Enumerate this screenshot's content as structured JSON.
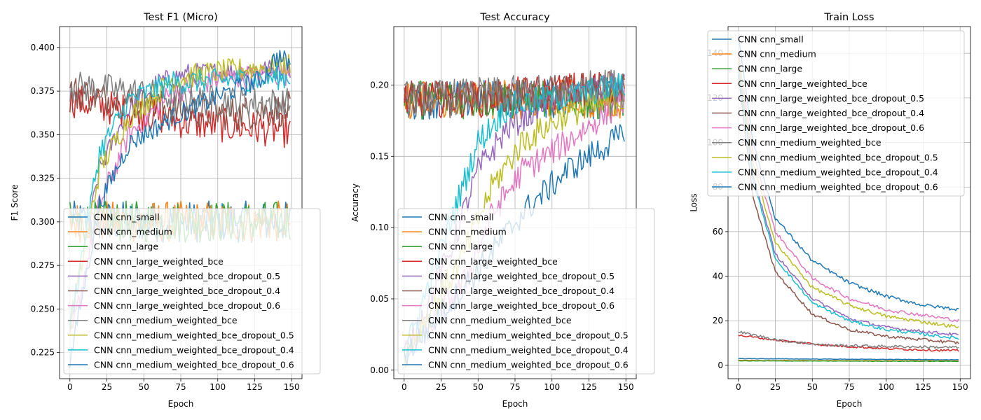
{
  "series_names": [
    "CNN cnn_small",
    "CNN cnn_medium",
    "CNN cnn_large",
    "CNN cnn_large_weighted_bce",
    "CNN cnn_large_weighted_bce_dropout_0.5",
    "CNN cnn_large_weighted_bce_dropout_0.4",
    "CNN cnn_large_weighted_bce_dropout_0.6",
    "CNN cnn_medium_weighted_bce",
    "CNN cnn_medium_weighted_bce_dropout_0.5",
    "CNN cnn_medium_weighted_bce_dropout_0.4",
    "CNN cnn_medium_weighted_bce_dropout_0.6"
  ],
  "colors": [
    "#1f77b4",
    "#ff7f0e",
    "#2ca02c",
    "#d62728",
    "#9467bd",
    "#8c564b",
    "#e377c2",
    "#7f7f7f",
    "#bcbd22",
    "#17becf",
    "#1f77b4"
  ],
  "chart_data": [
    {
      "type": "line",
      "title": "Test F1 (Micro)",
      "xlabel": "Epoch",
      "ylabel": "F1 Score",
      "xlim": [
        -7,
        157
      ],
      "ylim": [
        0.21,
        0.412
      ],
      "xticks": [
        0,
        25,
        50,
        75,
        100,
        125,
        150
      ],
      "yticks": [
        0.225,
        0.25,
        0.275,
        0.3,
        0.325,
        0.35,
        0.375,
        0.4
      ],
      "ytick_labels": [
        "0.225",
        "0.250",
        "0.275",
        "0.300",
        "0.325",
        "0.350",
        "0.375",
        "0.400"
      ],
      "grid": true,
      "legend_position": "lower center",
      "epochs": 150,
      "series": [
        {
          "name": "CNN cnn_small",
          "keypoints": [
            [
              0,
              0.3
            ],
            [
              150,
              0.3
            ]
          ],
          "noise": 0.012
        },
        {
          "name": "CNN cnn_medium",
          "keypoints": [
            [
              0,
              0.3
            ],
            [
              150,
              0.3
            ]
          ],
          "noise": 0.012
        },
        {
          "name": "CNN cnn_large",
          "keypoints": [
            [
              0,
              0.3
            ],
            [
              150,
              0.3
            ]
          ],
          "noise": 0.012
        },
        {
          "name": "CNN cnn_large_weighted_bce",
          "keypoints": [
            [
              0,
              0.37
            ],
            [
              30,
              0.365
            ],
            [
              80,
              0.357
            ],
            [
              150,
              0.352
            ]
          ],
          "noise": 0.01
        },
        {
          "name": "CNN cnn_large_weighted_bce_dropout_0.5",
          "keypoints": [
            [
              0,
              0.24
            ],
            [
              20,
              0.33
            ],
            [
              40,
              0.365
            ],
            [
              60,
              0.38
            ],
            [
              80,
              0.385
            ],
            [
              150,
              0.388
            ]
          ],
          "noise": 0.006
        },
        {
          "name": "CNN cnn_large_weighted_bce_dropout_0.4",
          "keypoints": [
            [
              0,
              0.375
            ],
            [
              30,
              0.37
            ],
            [
              70,
              0.365
            ],
            [
              110,
              0.362
            ],
            [
              150,
              0.365
            ]
          ],
          "noise": 0.01
        },
        {
          "name": "CNN cnn_large_weighted_bce_dropout_0.6",
          "keypoints": [
            [
              0,
              0.23
            ],
            [
              20,
              0.31
            ],
            [
              40,
              0.35
            ],
            [
              70,
              0.375
            ],
            [
              100,
              0.382
            ],
            [
              150,
              0.385
            ]
          ],
          "noise": 0.007
        },
        {
          "name": "CNN cnn_medium_weighted_bce",
          "keypoints": [
            [
              0,
              0.378
            ],
            [
              40,
              0.375
            ],
            [
              80,
              0.37
            ],
            [
              150,
              0.368
            ]
          ],
          "noise": 0.009
        },
        {
          "name": "CNN cnn_medium_weighted_bce_dropout_0.5",
          "keypoints": [
            [
              0,
              0.24
            ],
            [
              20,
              0.33
            ],
            [
              40,
              0.36
            ],
            [
              70,
              0.382
            ],
            [
              100,
              0.386
            ],
            [
              150,
              0.39
            ]
          ],
          "noise": 0.007
        },
        {
          "name": "CNN cnn_medium_weighted_bce_dropout_0.4",
          "keypoints": [
            [
              0,
              0.24
            ],
            [
              20,
              0.34
            ],
            [
              40,
              0.37
            ],
            [
              70,
              0.38
            ],
            [
              150,
              0.383
            ]
          ],
          "noise": 0.007
        },
        {
          "name": "CNN cnn_medium_weighted_bce_dropout_0.6",
          "keypoints": [
            [
              0,
              0.22
            ],
            [
              20,
              0.31
            ],
            [
              40,
              0.345
            ],
            [
              70,
              0.36
            ],
            [
              100,
              0.372
            ],
            [
              130,
              0.382
            ],
            [
              140,
              0.395
            ],
            [
              150,
              0.39
            ]
          ],
          "noise": 0.006
        }
      ]
    },
    {
      "type": "line",
      "title": "Test Accuracy",
      "xlabel": "Epoch",
      "ylabel": "Accuracy",
      "xlim": [
        -7,
        157
      ],
      "ylim": [
        -0.006,
        0.241
      ],
      "xticks": [
        0,
        25,
        50,
        75,
        100,
        125,
        150
      ],
      "yticks": [
        0.0,
        0.05,
        0.1,
        0.15,
        0.2
      ],
      "ytick_labels": [
        "0.00",
        "0.05",
        "0.10",
        "0.15",
        "0.20"
      ],
      "grid": true,
      "legend_position": "lower center",
      "epochs": 150,
      "series": [
        {
          "name": "CNN cnn_small",
          "keypoints": [
            [
              0,
              0.19
            ],
            [
              150,
              0.19
            ]
          ],
          "noise": 0.014
        },
        {
          "name": "CNN cnn_medium",
          "keypoints": [
            [
              0,
              0.19
            ],
            [
              150,
              0.19
            ]
          ],
          "noise": 0.014
        },
        {
          "name": "CNN cnn_large",
          "keypoints": [
            [
              0,
              0.19
            ],
            [
              150,
              0.19
            ]
          ],
          "noise": 0.014
        },
        {
          "name": "CNN cnn_large_weighted_bce",
          "keypoints": [
            [
              0,
              0.19
            ],
            [
              50,
              0.19
            ],
            [
              100,
              0.195
            ],
            [
              150,
              0.2
            ]
          ],
          "noise": 0.013
        },
        {
          "name": "CNN cnn_large_weighted_bce_dropout_0.5",
          "keypoints": [
            [
              0,
              0.01
            ],
            [
              30,
              0.08
            ],
            [
              50,
              0.14
            ],
            [
              70,
              0.17
            ],
            [
              100,
              0.19
            ],
            [
              150,
              0.2
            ]
          ],
          "noise": 0.01
        },
        {
          "name": "CNN cnn_large_weighted_bce_dropout_0.4",
          "keypoints": [
            [
              0,
              0.19
            ],
            [
              50,
              0.19
            ],
            [
              100,
              0.195
            ],
            [
              150,
              0.2
            ]
          ],
          "noise": 0.013
        },
        {
          "name": "CNN cnn_large_weighted_bce_dropout_0.6",
          "keypoints": [
            [
              0,
              0.01
            ],
            [
              40,
              0.06
            ],
            [
              60,
              0.11
            ],
            [
              80,
              0.14
            ],
            [
              110,
              0.16
            ],
            [
              150,
              0.19
            ]
          ],
          "noise": 0.01
        },
        {
          "name": "CNN cnn_medium_weighted_bce",
          "keypoints": [
            [
              0,
              0.19
            ],
            [
              100,
              0.195
            ],
            [
              150,
              0.2
            ]
          ],
          "noise": 0.013
        },
        {
          "name": "CNN cnn_medium_weighted_bce_dropout_0.5",
          "keypoints": [
            [
              0,
              0.01
            ],
            [
              40,
              0.08
            ],
            [
              60,
              0.13
            ],
            [
              80,
              0.16
            ],
            [
              110,
              0.18
            ],
            [
              150,
              0.19
            ]
          ],
          "noise": 0.01
        },
        {
          "name": "CNN cnn_medium_weighted_bce_dropout_0.4",
          "keypoints": [
            [
              0,
              0.01
            ],
            [
              30,
              0.1
            ],
            [
              50,
              0.16
            ],
            [
              70,
              0.185
            ],
            [
              150,
              0.2
            ]
          ],
          "noise": 0.01
        },
        {
          "name": "CNN cnn_medium_weighted_bce_dropout_0.6",
          "keypoints": [
            [
              0,
              0.01
            ],
            [
              50,
              0.07
            ],
            [
              80,
              0.11
            ],
            [
              110,
              0.14
            ],
            [
              140,
              0.16
            ],
            [
              150,
              0.165
            ]
          ],
          "noise": 0.01
        }
      ]
    },
    {
      "type": "line",
      "title": "Train Loss",
      "xlabel": "Epoch",
      "ylabel": "Loss",
      "xlim": [
        -7,
        157
      ],
      "ylim": [
        -6,
        152
      ],
      "xticks": [
        0,
        25,
        50,
        75,
        100,
        125,
        150
      ],
      "yticks": [
        0,
        20,
        40,
        60,
        80,
        100,
        120,
        140
      ],
      "ytick_labels": [
        "0",
        "20",
        "40",
        "60",
        "80",
        "100",
        "120",
        "140"
      ],
      "grid": true,
      "legend_position": "upper center",
      "epochs": 150,
      "series": [
        {
          "name": "CNN cnn_small",
          "keypoints": [
            [
              0,
              3.0
            ],
            [
              150,
              2.5
            ]
          ],
          "noise": 0.1
        },
        {
          "name": "CNN cnn_medium",
          "keypoints": [
            [
              0,
              2.2
            ],
            [
              150,
              2.0
            ]
          ],
          "noise": 0.1
        },
        {
          "name": "CNN cnn_large",
          "keypoints": [
            [
              0,
              2.0
            ],
            [
              150,
              1.8
            ]
          ],
          "noise": 0.1
        },
        {
          "name": "CNN cnn_large_weighted_bce",
          "keypoints": [
            [
              0,
              13.5
            ],
            [
              30,
              11
            ],
            [
              60,
              9
            ],
            [
              100,
              7.5
            ],
            [
              150,
              6.5
            ]
          ],
          "noise": 0.5
        },
        {
          "name": "CNN cnn_large_weighted_bce_dropout_0.5",
          "keypoints": [
            [
              0,
              135
            ],
            [
              10,
              85
            ],
            [
              25,
              50
            ],
            [
              50,
              30
            ],
            [
              75,
              21
            ],
            [
              100,
              17
            ],
            [
              150,
              13.5
            ]
          ],
          "noise": 0.7
        },
        {
          "name": "CNN cnn_large_weighted_bce_dropout_0.4",
          "keypoints": [
            [
              0,
              130
            ],
            [
              10,
              75
            ],
            [
              25,
              42
            ],
            [
              50,
              23
            ],
            [
              75,
              16
            ],
            [
              100,
              13
            ],
            [
              150,
              10
            ]
          ],
          "noise": 0.7
        },
        {
          "name": "CNN cnn_large_weighted_bce_dropout_0.6",
          "keypoints": [
            [
              0,
              140
            ],
            [
              10,
              95
            ],
            [
              25,
              60
            ],
            [
              50,
              39
            ],
            [
              75,
              30
            ],
            [
              100,
              25
            ],
            [
              150,
              20
            ]
          ],
          "noise": 0.8
        },
        {
          "name": "CNN cnn_medium_weighted_bce",
          "keypoints": [
            [
              0,
              15
            ],
            [
              30,
              11
            ],
            [
              60,
              9
            ],
            [
              100,
              8.5
            ],
            [
              150,
              8
            ]
          ],
          "noise": 0.6
        },
        {
          "name": "CNN cnn_medium_weighted_bce_dropout_0.5",
          "keypoints": [
            [
              0,
              138
            ],
            [
              10,
              90
            ],
            [
              25,
              55
            ],
            [
              50,
              35
            ],
            [
              75,
              27
            ],
            [
              100,
              22
            ],
            [
              150,
              17
            ]
          ],
          "noise": 0.8
        },
        {
          "name": "CNN cnn_medium_weighted_bce_dropout_0.4",
          "keypoints": [
            [
              0,
              133
            ],
            [
              10,
              83
            ],
            [
              25,
              48
            ],
            [
              50,
              28
            ],
            [
              75,
              20
            ],
            [
              100,
              16
            ],
            [
              150,
              12
            ]
          ],
          "noise": 0.7
        },
        {
          "name": "CNN cnn_medium_weighted_bce_dropout_0.6",
          "keypoints": [
            [
              0,
              148
            ],
            [
              10,
              100
            ],
            [
              25,
              66
            ],
            [
              50,
              47
            ],
            [
              75,
              37
            ],
            [
              100,
              31
            ],
            [
              125,
              27
            ],
            [
              150,
              25
            ]
          ],
          "noise": 0.8
        }
      ]
    }
  ]
}
